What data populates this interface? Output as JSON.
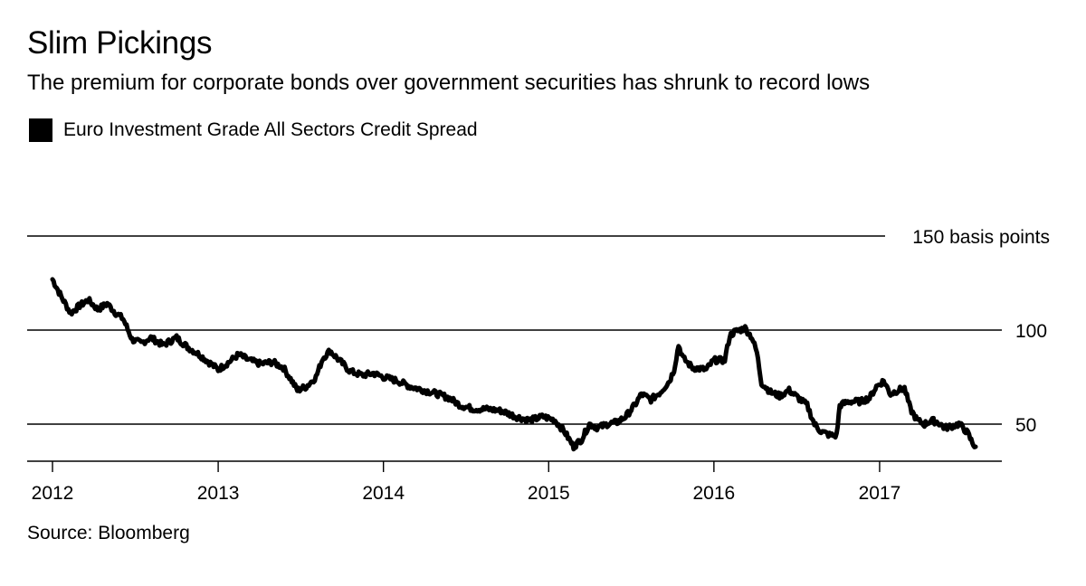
{
  "title": "Slim Pickings",
  "subtitle": "The premium for corporate bonds over government securities has shrunk to record lows",
  "source": "Source: Bloomberg",
  "colors": {
    "line": "#000000",
    "grid": "#000000",
    "background": "#ffffff"
  },
  "chart_data": {
    "type": "line",
    "title": "Slim Pickings",
    "subtitle": "The premium for corporate bonds over government securities has shrunk to record lows",
    "ylabel": "",
    "xlabel": "",
    "y_unit_label": "150 basis points",
    "ylim": [
      30,
      150
    ],
    "xlim": [
      "2012-01-01",
      "2017-08-01"
    ],
    "grid": "horizontal",
    "legend_position": "top-left",
    "y_ticks": [
      {
        "value": 150,
        "label": "150 basis points"
      },
      {
        "value": 100,
        "label": "100"
      },
      {
        "value": 50,
        "label": "50"
      }
    ],
    "x_ticks": [
      {
        "date": "2012-01-01",
        "label": "2012"
      },
      {
        "date": "2013-01-01",
        "label": "2013"
      },
      {
        "date": "2014-01-01",
        "label": "2014"
      },
      {
        "date": "2015-01-01",
        "label": "2015"
      },
      {
        "date": "2016-01-01",
        "label": "2016"
      },
      {
        "date": "2017-01-01",
        "label": "2017"
      }
    ],
    "series": [
      {
        "name": "Euro Investment Grade All Sectors Credit Spread",
        "color": "#000000",
        "points": [
          [
            "2012-01-01",
            127
          ],
          [
            "2012-01-20",
            118
          ],
          [
            "2012-02-10",
            109
          ],
          [
            "2012-03-01",
            113
          ],
          [
            "2012-03-20",
            116
          ],
          [
            "2012-04-10",
            111
          ],
          [
            "2012-05-01",
            114
          ],
          [
            "2012-05-20",
            109
          ],
          [
            "2012-06-05",
            106
          ],
          [
            "2012-06-25",
            95
          ],
          [
            "2012-07-15",
            93
          ],
          [
            "2012-08-05",
            96
          ],
          [
            "2012-09-01",
            92
          ],
          [
            "2012-10-01",
            96
          ],
          [
            "2012-10-25",
            91
          ],
          [
            "2012-11-20",
            87
          ],
          [
            "2013-01-01",
            79
          ],
          [
            "2013-01-25",
            83
          ],
          [
            "2013-02-15",
            87
          ],
          [
            "2013-03-10",
            84
          ],
          [
            "2013-04-05",
            82
          ],
          [
            "2013-05-01",
            83
          ],
          [
            "2013-05-25",
            80
          ],
          [
            "2013-06-10",
            74
          ],
          [
            "2013-06-25",
            68
          ],
          [
            "2013-07-15",
            70
          ],
          [
            "2013-08-05",
            75
          ],
          [
            "2013-08-20",
            85
          ],
          [
            "2013-09-05",
            89
          ],
          [
            "2013-09-25",
            84
          ],
          [
            "2013-10-20",
            78
          ],
          [
            "2013-11-15",
            76
          ],
          [
            "2013-12-10",
            77
          ],
          [
            "2014-01-01",
            75
          ],
          [
            "2014-02-01",
            73
          ],
          [
            "2014-03-01",
            70
          ],
          [
            "2014-04-01",
            68
          ],
          [
            "2014-05-01",
            66
          ],
          [
            "2014-05-25",
            64
          ],
          [
            "2014-06-20",
            60
          ],
          [
            "2014-07-20",
            58
          ],
          [
            "2014-08-20",
            58
          ],
          [
            "2014-09-20",
            57
          ],
          [
            "2014-10-20",
            54
          ],
          [
            "2014-11-20",
            52
          ],
          [
            "2014-12-20",
            54
          ],
          [
            "2015-01-15",
            52
          ],
          [
            "2015-02-05",
            46
          ],
          [
            "2015-02-25",
            38
          ],
          [
            "2015-03-15",
            42
          ],
          [
            "2015-04-01",
            50
          ],
          [
            "2015-04-20",
            48
          ],
          [
            "2015-05-10",
            50
          ],
          [
            "2015-06-01",
            51
          ],
          [
            "2015-06-20",
            54
          ],
          [
            "2015-07-10",
            60
          ],
          [
            "2015-07-25",
            66
          ],
          [
            "2015-08-15",
            63
          ],
          [
            "2015-09-05",
            67
          ],
          [
            "2015-09-25",
            73
          ],
          [
            "2015-10-05",
            79
          ],
          [
            "2015-10-15",
            92
          ],
          [
            "2015-10-25",
            85
          ],
          [
            "2015-11-15",
            80
          ],
          [
            "2015-12-15",
            79
          ],
          [
            "2016-01-01",
            84
          ],
          [
            "2016-01-25",
            84
          ],
          [
            "2016-02-05",
            97
          ],
          [
            "2016-02-15",
            99
          ],
          [
            "2016-03-10",
            101
          ],
          [
            "2016-03-25",
            96
          ],
          [
            "2016-04-05",
            88
          ],
          [
            "2016-04-15",
            72
          ],
          [
            "2016-05-05",
            67
          ],
          [
            "2016-05-25",
            65
          ],
          [
            "2016-06-15",
            68
          ],
          [
            "2016-07-05",
            64
          ],
          [
            "2016-07-25",
            60
          ],
          [
            "2016-08-10",
            50
          ],
          [
            "2016-08-25",
            46
          ],
          [
            "2016-09-15",
            44
          ],
          [
            "2016-09-28",
            44
          ],
          [
            "2016-10-05",
            60
          ],
          [
            "2016-10-25",
            62
          ],
          [
            "2016-11-20",
            62
          ],
          [
            "2016-12-10",
            64
          ],
          [
            "2016-12-25",
            70
          ],
          [
            "2017-01-10",
            73
          ],
          [
            "2017-01-25",
            66
          ],
          [
            "2017-02-10",
            68
          ],
          [
            "2017-02-25",
            69
          ],
          [
            "2017-03-10",
            58
          ],
          [
            "2017-03-25",
            52
          ],
          [
            "2017-04-10",
            50
          ],
          [
            "2017-04-25",
            52
          ],
          [
            "2017-05-10",
            51
          ],
          [
            "2017-05-25",
            48
          ],
          [
            "2017-06-10",
            49
          ],
          [
            "2017-06-25",
            50
          ],
          [
            "2017-07-05",
            48
          ],
          [
            "2017-07-15",
            45
          ],
          [
            "2017-07-25",
            40
          ],
          [
            "2017-08-01",
            38
          ]
        ]
      }
    ]
  }
}
